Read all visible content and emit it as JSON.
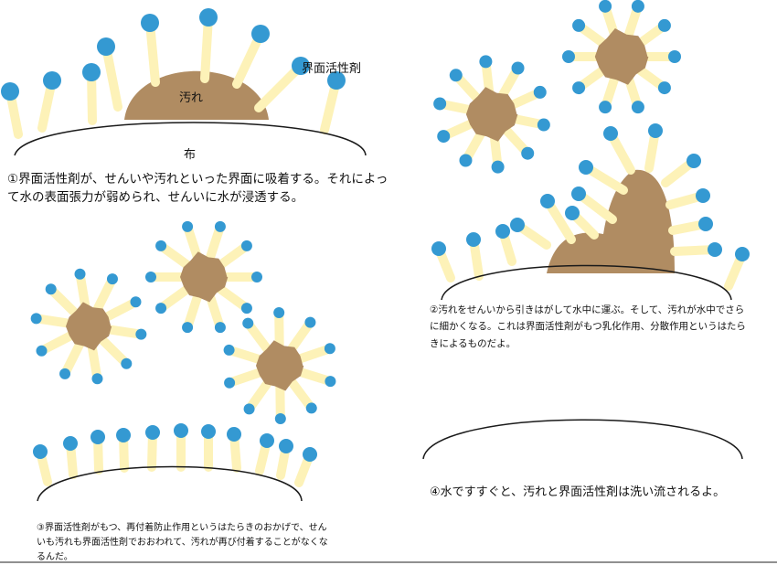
{
  "labels": {
    "surfactant": "界面活性剤",
    "dirt": "汚れ",
    "cloth": "布"
  },
  "captions": {
    "step1": "①界面活性剤が、せんいや汚れといった界面に吸着する。それによって水の表面張力が弱められ、せんいに水が浸透する。",
    "step2": "②汚れをせんいから引きはがして水中に運ぶ。そして、汚れが水中でさらに細かくなる。これは界面活性剤がもつ乳化作用、分散作用というはたらきによるものだよ。",
    "step3": "③界面活性剤がもつ、再付着防止作用というはたらきのおかげで、せんいも汚れも界面活性剤でおおわれて、汚れが再び付着することがなくなるんだ。",
    "step4": "④水ですすぐと、汚れと界面活性剤は洗い流されるよ。"
  },
  "colors": {
    "dirt": "#b08c62",
    "tail": "#fdf2b8",
    "head": "#3499d2",
    "line": "#1a1a1a"
  }
}
